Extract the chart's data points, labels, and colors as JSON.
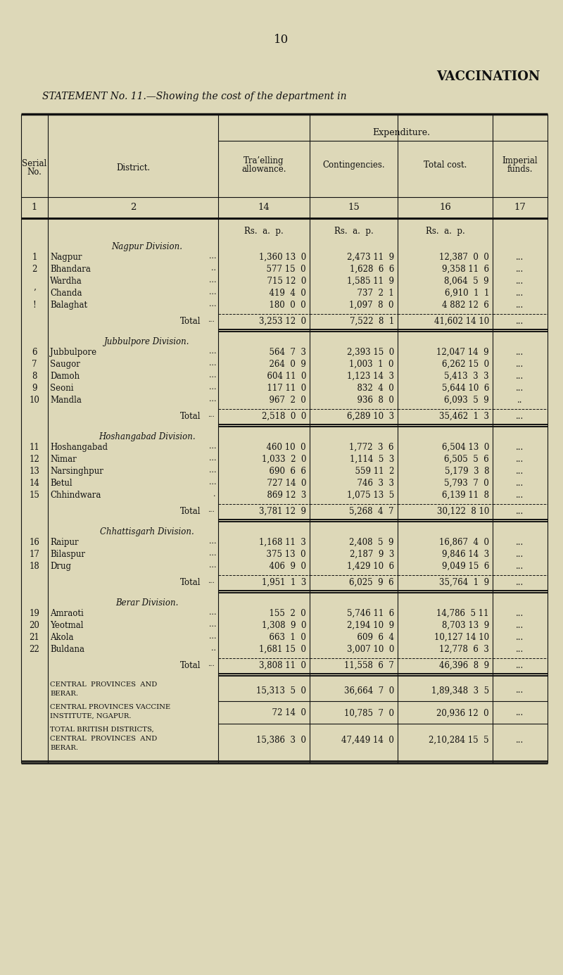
{
  "page_number": "10",
  "title_line1": "VACCINATION",
  "title_line2": "STATEMENT No. 11.—Showing the cost of the department in",
  "bg_color": "#ddd8b8",
  "sections": [
    {
      "name": "Nagpur Division.",
      "rows": [
        [
          "1",
          "Nagpur",
          "...",
          "1,360 13  0",
          "2,473 11  9",
          "12,387  0  0",
          "..."
        ],
        [
          "2",
          "Bhandara",
          "..",
          "  577 15  0",
          "1,628  6  6",
          "9,358 11  6",
          "..."
        ],
        [
          "",
          "Wardha",
          "...",
          "  715 12  0",
          "1,585 11  9",
          "8,064  5  9",
          "..."
        ],
        [
          "’",
          "Chanda",
          "...",
          "  419  4  0",
          "  737  2  1",
          "6,910  1  1",
          "..."
        ],
        [
          "!",
          "Balaghat",
          "...",
          "  180  0  0",
          "1,097  8  0",
          "4 882 12  6",
          "..."
        ]
      ],
      "total": [
        "3,253 12  0",
        "7,522  8  1",
        "41,602 14 10",
        "..."
      ]
    },
    {
      "name": "Jubbulpore Division.",
      "rows": [
        [
          "6",
          "Jubbulpore",
          "...",
          "  564  7  3",
          "2,393 15  0",
          "12,047 14  9",
          "..."
        ],
        [
          "7",
          "Saugor",
          "...",
          "  264  0  9",
          "1,003  1  0",
          "6,262 15  0",
          "..."
        ],
        [
          "8",
          "Damoh",
          "...",
          "  604 11  0",
          "1,123 14  3",
          "5,413  3  3",
          "..."
        ],
        [
          "9",
          "Seoni",
          "...",
          "  117 11  0",
          "  832  4  0",
          "5,644 10  6",
          "..."
        ],
        [
          "10",
          "Mandla",
          "...",
          "  967  2  0",
          "  936  8  0",
          "6,093  5  9",
          ".."
        ]
      ],
      "total": [
        "2,518  0  0",
        "6,289 10  3",
        "35,462  1  3",
        "..."
      ]
    },
    {
      "name": "Hoshangabad Division.",
      "rows": [
        [
          "11",
          "Hoshangabad",
          "...",
          "  460 10  0",
          "1,772  3  6",
          "6,504 13  0",
          "..."
        ],
        [
          "12",
          "Nimar",
          "...",
          "1,033  2  0",
          "1,114  5  3",
          "6,505  5  6",
          "..."
        ],
        [
          "13",
          "Narsinghpur",
          "...",
          "  690  6  6",
          "  559 11  2",
          "5,179  3  8",
          "..."
        ],
        [
          "14",
          "Betul",
          "...",
          "  727 14  0",
          "  746  3  3",
          "5,793  7  0",
          "..."
        ],
        [
          "15",
          "Chhindwara",
          ".",
          "  869 12  3",
          "1,075 13  5",
          "6,139 11  8",
          "..."
        ]
      ],
      "total": [
        "3,781 12  9",
        "5,268  4  7",
        "30,122  8 10",
        "..."
      ]
    },
    {
      "name": "Chhattisgarh Division.",
      "rows": [
        [
          "16",
          "Raipur",
          "...",
          "1,168 11  3",
          "2,408  5  9",
          "16,867  4  0",
          "..."
        ],
        [
          "17",
          "Bilaspur",
          "...",
          "  375 13  0",
          "2,187  9  3",
          "9,846 14  3",
          "..."
        ],
        [
          "18",
          "Drug",
          "...",
          "  406  9  0",
          "1,429 10  6",
          "9,049 15  6",
          "..."
        ]
      ],
      "total": [
        "1,951  1  3",
        "6,025  9  6",
        "35,764  1  9",
        "..."
      ]
    },
    {
      "name": "Berar Division.",
      "rows": [
        [
          "19",
          "Amraoti",
          "...",
          "  155  2  0",
          "5,746 11  6",
          "14,786  5 11",
          "..."
        ],
        [
          "20",
          "Yeotmal",
          "...",
          "1,308  9  0",
          "2,194 10  9",
          "8,703 13  9",
          "..."
        ],
        [
          "21",
          "Akola",
          "...",
          "  663  1  0",
          "  609  6  4",
          "10,127 14 10",
          "..."
        ],
        [
          "22",
          "Buldana",
          "..",
          "1,681 15  0",
          "3,007 10  0",
          "12,778  6  3",
          "..."
        ]
      ],
      "total": [
        "3,808 11  0",
        "11,558  6  7",
        "46,396  8  9",
        "..."
      ]
    }
  ],
  "footer_rows": [
    {
      "label_lines": [
        "Central  Provinces  and",
        "Berar."
      ],
      "label_style": "smallcaps",
      "ta": "15,313  5  0",
      "cont": "36,664  7  0",
      "total": "1,89,348  3  5",
      "imp": "..."
    },
    {
      "label_lines": [
        "Central Provinces Vaccine",
        "Institute, Ngapur."
      ],
      "label_style": "smallcaps",
      "ta": "  72 14  0",
      "cont": "10,785  7  0",
      "total": "20,936 12  0",
      "imp": "..."
    },
    {
      "label_lines": [
        "Total British Districts,",
        "Central  Provinces  and",
        "Berar."
      ],
      "label_style": "smallcaps",
      "ta": "15,386  3  0",
      "cont": "47,449 14  0",
      "total": "2,10,284 15  5",
      "imp": "..."
    }
  ]
}
